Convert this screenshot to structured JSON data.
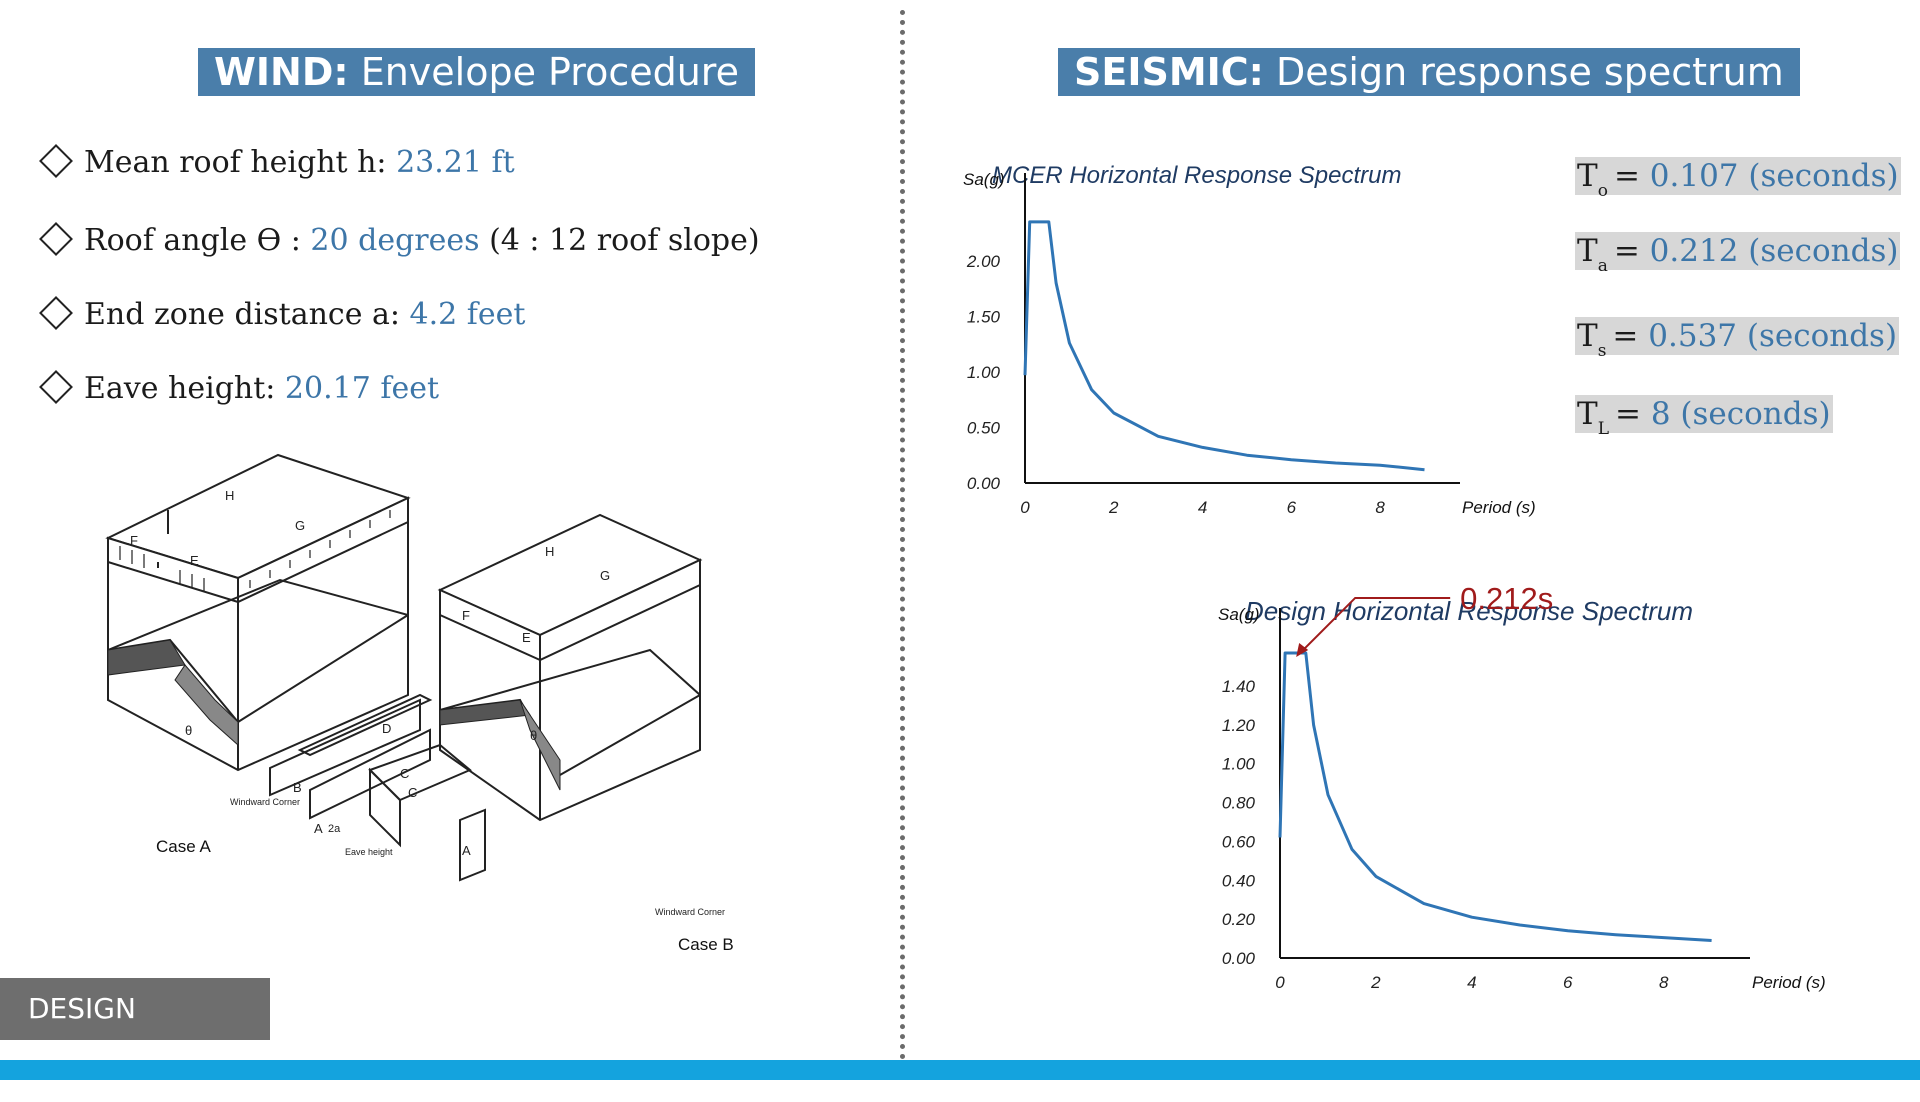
{
  "wind": {
    "title_bold": "WIND:",
    "title_rest": " Envelope Procedure",
    "bullets": [
      {
        "label": "Mean roof height h: ",
        "value": "23.21 ft",
        "suffix": ""
      },
      {
        "label": "Roof angle ϴ : ",
        "value": "20 degrees",
        "suffix": " (4 : 12 roof slope)"
      },
      {
        "label": "End zone distance a: ",
        "value": "4.2 feet",
        "suffix": ""
      },
      {
        "label": "Eave height: ",
        "value": "20.17 feet",
        "suffix": ""
      }
    ],
    "diagram": {
      "case_a": "Case A",
      "case_b": "Case B",
      "windward_corner": "Windward\nCorner",
      "eave_height": "Eave\nheight",
      "zones": [
        "F",
        "E",
        "H",
        "G",
        "D",
        "C",
        "B",
        "A"
      ],
      "theta": "θ",
      "two_a": "2a"
    }
  },
  "seismic": {
    "title_bold": "SEISMIC:",
    "title_rest": " Design response spectrum",
    "params": [
      {
        "sym": "T",
        "sub": "o",
        "value": "0.107 (seconds)"
      },
      {
        "sym": "T",
        "sub": "a",
        "value": "0.212 (seconds)"
      },
      {
        "sym": "T",
        "sub": "s",
        "value": "0.537 (seconds)"
      },
      {
        "sym": "T",
        "sub": "L",
        "value": "8 (seconds)"
      }
    ]
  },
  "chart_data": [
    {
      "type": "line",
      "title": "MCER Horizontal Response Spectrum",
      "ylabel": "Sa(g)",
      "xlabel": "Period (s)",
      "xlim": [
        0,
        9.8
      ],
      "ylim": [
        0,
        2.7
      ],
      "xticks": [
        0,
        2,
        4,
        6,
        8
      ],
      "yticks": [
        "0.00",
        "0.50",
        "1.00",
        "1.50",
        "2.00"
      ],
      "series": [
        {
          "color": "#2f75b5",
          "x": [
            0,
            0.107,
            0.2,
            0.4,
            0.537,
            0.7,
            1.0,
            1.5,
            2.0,
            3.0,
            4.0,
            5.0,
            6.0,
            7.0,
            8.0,
            9.0
          ],
          "y": [
            0.97,
            2.35,
            2.35,
            2.35,
            2.35,
            1.8,
            1.26,
            0.84,
            0.63,
            0.42,
            0.32,
            0.25,
            0.21,
            0.18,
            0.16,
            0.12
          ]
        }
      ]
    },
    {
      "type": "line",
      "title": "Design Horizontal Response Spectrum",
      "ylabel": "Sa(g)",
      "xlabel": "Period (s)",
      "xlim": [
        0,
        9.8
      ],
      "ylim": [
        0,
        1.75
      ],
      "xticks": [
        0,
        2,
        4,
        6,
        8
      ],
      "yticks": [
        "0.00",
        "0.20",
        "0.40",
        "0.60",
        "0.80",
        "1.00",
        "1.20",
        "1.40"
      ],
      "annotation": "0.212s",
      "series": [
        {
          "color": "#2f75b5",
          "x": [
            0,
            0.107,
            0.212,
            0.4,
            0.537,
            0.7,
            1.0,
            1.5,
            2.0,
            3.0,
            4.0,
            5.0,
            6.0,
            7.0,
            8.0,
            9.0
          ],
          "y": [
            0.62,
            1.57,
            1.57,
            1.57,
            1.57,
            1.2,
            0.84,
            0.56,
            0.42,
            0.28,
            0.21,
            0.17,
            0.14,
            0.12,
            0.105,
            0.09
          ]
        }
      ]
    }
  ],
  "footer": {
    "section_label": "DESIGN CRITERIA"
  },
  "colors": {
    "title_bg": "#4a7eaa",
    "value_text": "#3d76a8",
    "curve": "#2f75b5",
    "annotation": "#a01b1b",
    "bottom_bar": "#14a3de"
  }
}
